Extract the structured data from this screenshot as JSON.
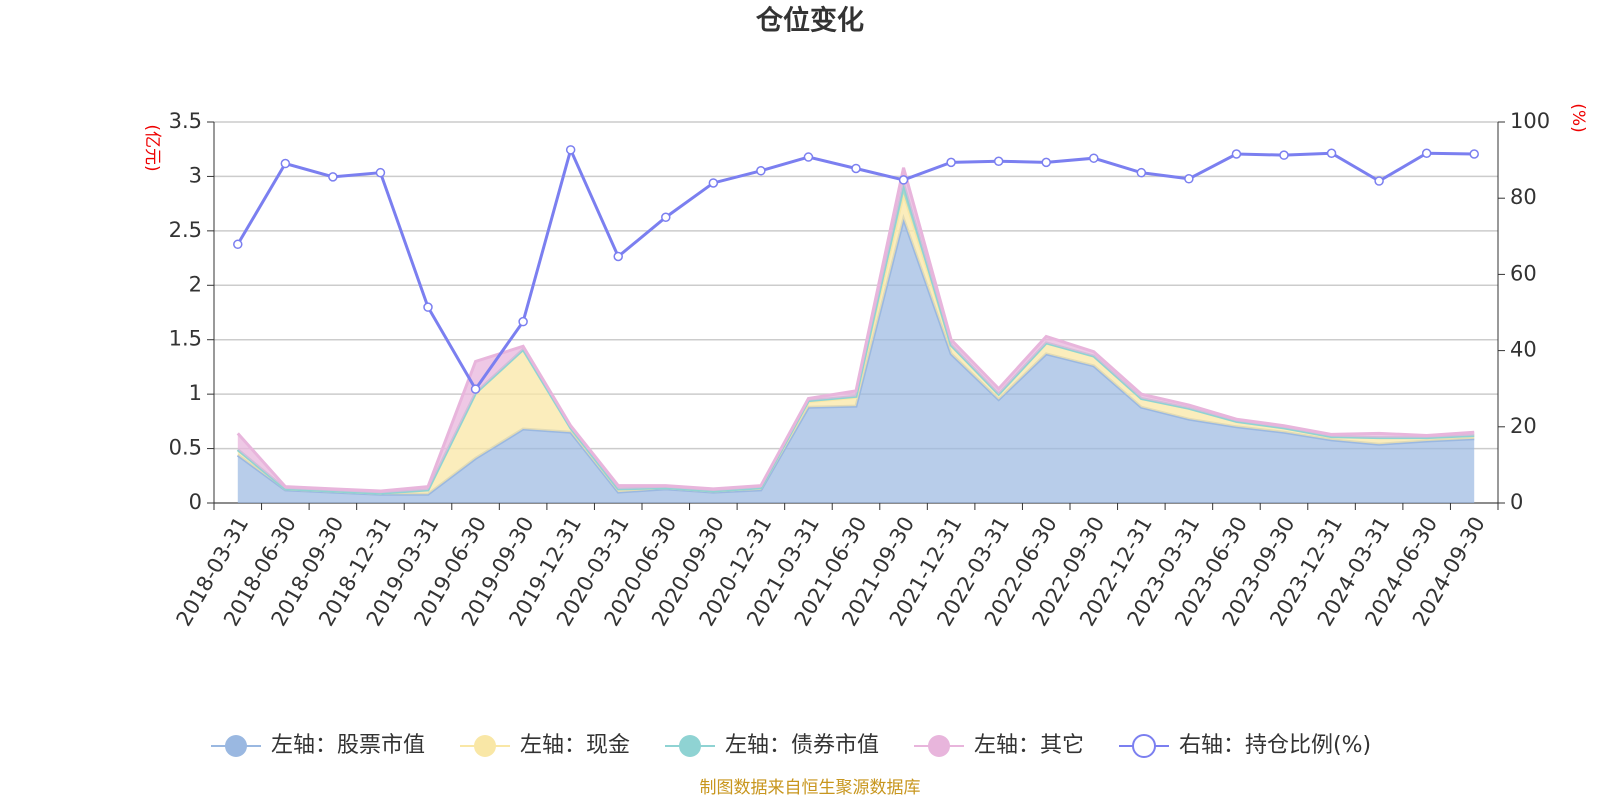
{
  "chart_data": {
    "type": "stacked_area_line",
    "title": "仓位变化",
    "y_label": "(亿元)",
    "y2_label": "(%)",
    "categories": [
      "2018-03-31",
      "2018-06-30",
      "2018-09-30",
      "2018-12-31",
      "2019-03-31",
      "2019-06-30",
      "2019-09-30",
      "2019-12-31",
      "2020-03-31",
      "2020-06-30",
      "2020-09-30",
      "2020-12-31",
      "2021-03-31",
      "2021-06-30",
      "2021-09-30",
      "2021-12-31",
      "2022-03-31",
      "2022-06-30",
      "2022-09-30",
      "2022-12-31",
      "2023-03-31",
      "2023-06-30",
      "2023-09-30",
      "2023-12-31",
      "2024-03-31",
      "2024-06-30",
      "2024-09-30"
    ],
    "series": [
      {
        "name": "左轴：股票市值",
        "color": "#9ab8e1",
        "values": [
          0.44,
          0.12,
          0.1,
          0.08,
          0.08,
          0.41,
          0.68,
          0.65,
          0.1,
          0.13,
          0.1,
          0.12,
          0.88,
          0.89,
          2.61,
          1.37,
          0.95,
          1.37,
          1.26,
          0.88,
          0.77,
          0.7,
          0.65,
          0.58,
          0.54,
          0.57,
          0.59
        ]
      },
      {
        "name": "左轴：现金",
        "color": "#f9e7a6",
        "values": [
          0.05,
          0.01,
          0.01,
          0.01,
          0.04,
          0.6,
          0.73,
          0.04,
          0.03,
          0.01,
          0.01,
          0.02,
          0.05,
          0.08,
          0.23,
          0.08,
          0.05,
          0.1,
          0.09,
          0.08,
          0.1,
          0.05,
          0.04,
          0.03,
          0.06,
          0.03,
          0.03
        ]
      },
      {
        "name": "左轴：债券市值",
        "color": "#8fd3d3",
        "values": [
          0,
          0,
          0,
          0,
          0,
          0,
          0,
          0,
          0,
          0,
          0,
          0,
          0.01,
          0.01,
          0.09,
          0,
          0,
          0,
          0,
          0,
          0,
          0,
          0,
          0,
          0,
          0,
          0
        ]
      },
      {
        "name": "左轴：其它",
        "color": "#e8b5dc",
        "values": [
          0.15,
          0.02,
          0.02,
          0.02,
          0.03,
          0.29,
          0.03,
          0.02,
          0.03,
          0.02,
          0.02,
          0.02,
          0.02,
          0.05,
          0.15,
          0.05,
          0.05,
          0.06,
          0.04,
          0.04,
          0.03,
          0.02,
          0.02,
          0.02,
          0.04,
          0.02,
          0.03
        ]
      },
      {
        "name": "右轴：持仓比例(%)",
        "color": "#7b7ff0",
        "axis": "y2",
        "values": [
          67.9,
          89.1,
          85.6,
          86.7,
          51.4,
          29.9,
          47.6,
          92.7,
          64.7,
          75.0,
          84.0,
          87.2,
          90.8,
          87.8,
          84.8,
          89.4,
          89.7,
          89.4,
          90.5,
          86.7,
          85.1,
          91.6,
          91.3,
          91.8,
          84.5,
          91.8,
          91.6
        ]
      }
    ],
    "ylim": [
      0,
      3.5
    ],
    "yticks": [
      0,
      0.5,
      1,
      1.5,
      2,
      2.5,
      3,
      3.5
    ],
    "y2lim": [
      0,
      100
    ],
    "y2ticks": [
      0,
      20,
      40,
      60,
      80,
      100
    ],
    "grid": true,
    "legend": "bottom",
    "source": "制图数据来自恒生聚源数据库"
  }
}
